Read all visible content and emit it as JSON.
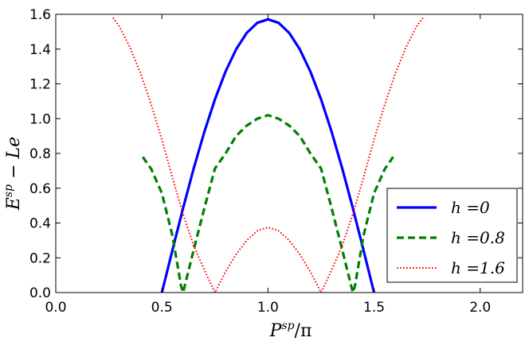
{
  "chart_data": {
    "type": "line",
    "xlabel": "P^{sp}/π",
    "ylabel": "E^{sp} − Le",
    "xlim": [
      0.0,
      2.2
    ],
    "ylim": [
      0.0,
      1.6
    ],
    "xticks": [
      "0.0",
      "0.5",
      "1.0",
      "1.5",
      "2.0"
    ],
    "yticks": [
      "0.0",
      "0.2",
      "0.4",
      "0.6",
      "0.8",
      "1.0",
      "1.2",
      "1.4",
      "1.6"
    ],
    "grid": false,
    "legend_position": "lower-right",
    "series": [
      {
        "name": "h =0",
        "color": "#0000ff",
        "style": "solid",
        "x": [
          0.5,
          0.55,
          0.6,
          0.65,
          0.7,
          0.75,
          0.8,
          0.85,
          0.9,
          0.95,
          1.0,
          1.05,
          1.1,
          1.15,
          1.2,
          1.25,
          1.3,
          1.35,
          1.4,
          1.45,
          1.5
        ],
        "y": [
          0.0,
          0.245,
          0.485,
          0.713,
          0.924,
          1.111,
          1.271,
          1.399,
          1.493,
          1.551,
          1.571,
          1.551,
          1.493,
          1.399,
          1.271,
          1.111,
          0.924,
          0.713,
          0.485,
          0.245,
          0.0
        ]
      },
      {
        "name": "h =0.8",
        "color": "#007f00",
        "style": "dashed",
        "x": [
          0.41,
          0.45,
          0.5,
          0.55,
          0.59,
          0.6,
          0.65,
          0.7,
          0.75,
          0.8,
          0.85,
          0.9,
          0.95,
          1.0,
          1.05,
          1.1,
          1.15,
          1.2,
          1.25,
          1.3,
          1.35,
          1.4,
          1.41,
          1.45,
          1.5,
          1.55,
          1.59
        ],
        "y": [
          0.78,
          0.71,
          0.571,
          0.326,
          0.04,
          0.0,
          0.245,
          0.485,
          0.713,
          0.8,
          0.9,
          0.96,
          1.0,
          1.02,
          1.0,
          0.96,
          0.9,
          0.8,
          0.713,
          0.485,
          0.245,
          0.0,
          0.04,
          0.326,
          0.571,
          0.71,
          0.78
        ]
      },
      {
        "name": "h =1.6",
        "color": "#ff0000",
        "style": "dotted",
        "x": [
          0.27,
          0.3,
          0.35,
          0.4,
          0.45,
          0.5,
          0.55,
          0.6,
          0.65,
          0.7,
          0.75,
          0.8,
          0.85,
          0.9,
          0.95,
          1.0,
          1.05,
          1.1,
          1.15,
          1.2,
          1.25,
          1.3,
          1.35,
          1.4,
          1.45,
          1.5,
          1.55,
          1.6,
          1.65,
          1.7,
          1.73
        ],
        "y": [
          1.58,
          1.53,
          1.41,
          1.26,
          1.08,
          0.88,
          0.66,
          0.45,
          0.27,
          0.13,
          0.0,
          0.12,
          0.22,
          0.3,
          0.355,
          0.375,
          0.355,
          0.3,
          0.22,
          0.12,
          0.0,
          0.13,
          0.27,
          0.45,
          0.66,
          0.88,
          1.08,
          1.26,
          1.41,
          1.53,
          1.58
        ]
      }
    ]
  }
}
